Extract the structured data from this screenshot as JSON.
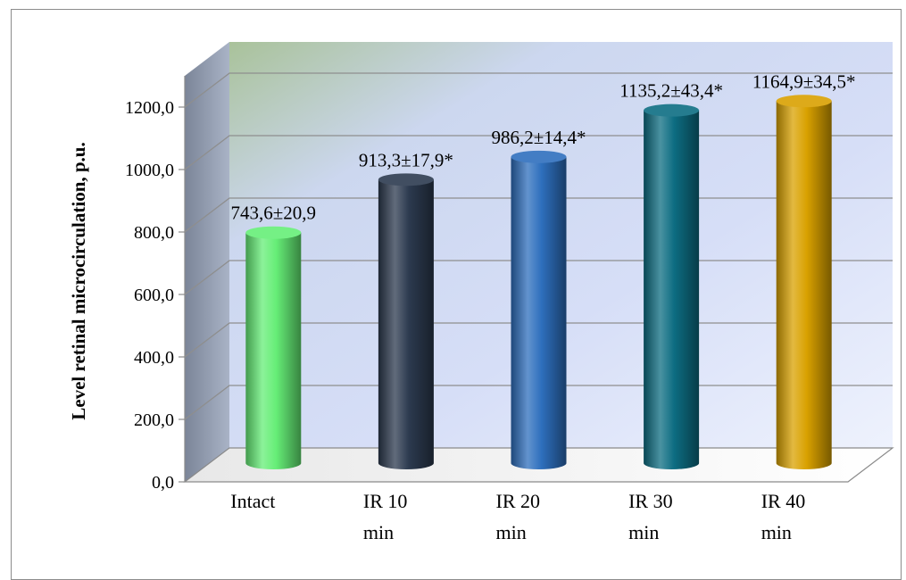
{
  "chart_data": {
    "type": "bar",
    "style": "3d-cylinder",
    "title": "",
    "xlabel": "",
    "ylabel": "Level retinal microcirculation, p.u.",
    "ylim": [
      0,
      1200
    ],
    "yticks": [
      "0,0",
      "200,0",
      "400,0",
      "600,0",
      "800,0",
      "1000,0",
      "1200,0"
    ],
    "grid": true,
    "legend": "none",
    "categories": [
      "Intact",
      "IR 10 min",
      "IR 20 min",
      "IR 30 min",
      "IR 40 min"
    ],
    "category_lines": [
      [
        "Intact"
      ],
      [
        "IR 10",
        "min"
      ],
      [
        "IR 20",
        "min"
      ],
      [
        "IR 30",
        "min"
      ],
      [
        "IR 40",
        "min"
      ]
    ],
    "values": [
      743.6,
      913.3,
      986.2,
      1135.2,
      1164.9
    ],
    "data_labels": [
      "743,6±20,9",
      "913,3±17,9*",
      "986,2±14,4*",
      "1135,2±43,4*",
      "1164,9±34,5*"
    ],
    "colors": [
      "#66ee77",
      "#2c3a4f",
      "#2e6fbd",
      "#0d6d82",
      "#d9a100"
    ]
  }
}
